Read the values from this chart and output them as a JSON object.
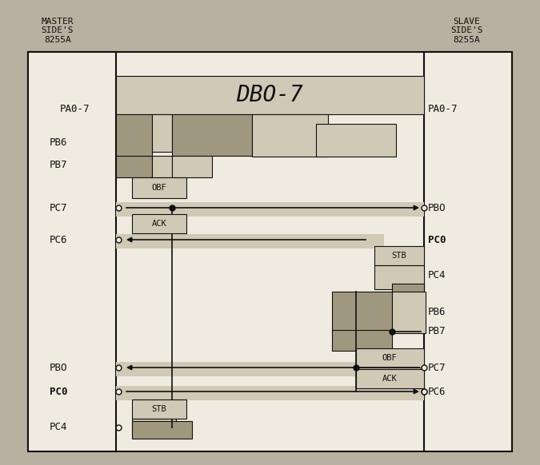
{
  "bg_color": "#b8b0a0",
  "box_fill": "#f0ebe0",
  "box_border": "#111111",
  "dk": "#a0977f",
  "lt": "#cfc9b5",
  "figsize": [
    6.75,
    5.82
  ],
  "dpi": 100,
  "master_label": "MASTER\nSIDE'S\n8255A",
  "slave_label": "SLAVE\nSIDE'S\n8255A",
  "title": "DBO-7"
}
